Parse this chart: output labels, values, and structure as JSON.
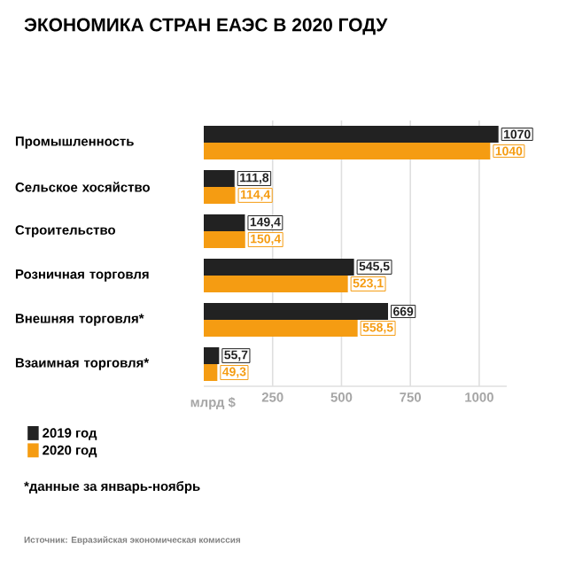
{
  "chart_data": {
    "type": "bar",
    "orientation": "horizontal",
    "title": "ЭКОНОМИКА СТРАН ЕАЭС В 2020 ГОДУ",
    "xlabel": "млрд $",
    "categories": [
      "Промышленность",
      "Сельское хосяйство",
      "Строительство",
      "Розничная торговля",
      "Внешняя торговля*",
      "Взаимная торговля*"
    ],
    "series": [
      {
        "name": "2019 год",
        "color": "#222222",
        "values": [
          1070,
          111.8,
          149.4,
          545.5,
          669,
          55.7
        ],
        "value_labels": [
          "1070",
          "111,8",
          "149,4",
          "545,5",
          "669",
          "55,7"
        ]
      },
      {
        "name": "2020 год",
        "color": "#f59c12",
        "values": [
          1040,
          114.4,
          150.4,
          523.1,
          558.5,
          49.3
        ],
        "value_labels": [
          "1040",
          "114,4",
          "150,4",
          "523,1",
          "558,5",
          "49,3"
        ]
      }
    ],
    "xlim": [
      0,
      1100
    ],
    "xticks": [
      250,
      500,
      750,
      1000
    ],
    "grid": "x",
    "legend": "bottom left",
    "annotations": [
      "*данные за январь-ноябрь",
      "Источник:  Евразийская экономическая комиссия"
    ]
  }
}
